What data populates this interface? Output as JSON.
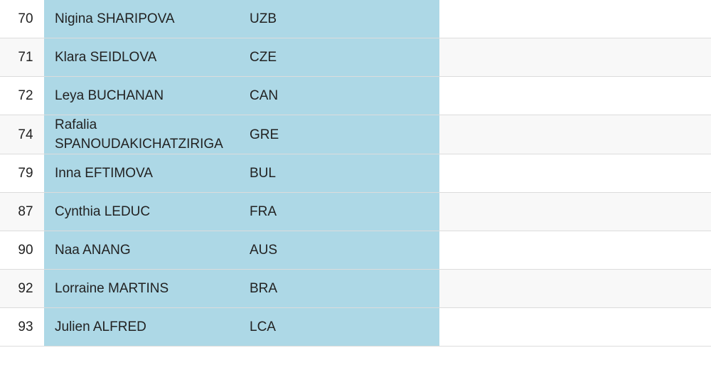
{
  "table": {
    "rows": [
      [
        70,
        "Nigina SHARIPOVA",
        "UZB"
      ],
      [
        71,
        "Klara SEIDLOVA",
        "CZE"
      ],
      [
        72,
        "Leya BUCHANAN",
        "CAN"
      ],
      [
        74,
        "Rafalia SPANOUDAKICHATZIRIGA",
        "GRE"
      ],
      [
        79,
        "Inna EFTIMOVA",
        "BUL"
      ],
      [
        87,
        "Cynthia LEDUC",
        "FRA"
      ],
      [
        90,
        "Naa ANANG",
        "AUS"
      ],
      [
        92,
        "Lorraine MARTINS",
        "BRA"
      ],
      [
        93,
        "Julien ALFRED",
        "LCA"
      ]
    ]
  }
}
